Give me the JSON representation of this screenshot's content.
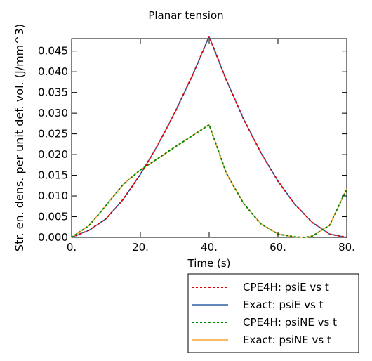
{
  "chart_data": {
    "type": "line",
    "title": "Planar tension",
    "xlabel": "Time (s)",
    "ylabel": "Str. en. dens. per unit def. vol. (J/mm^3)",
    "xlim": [
      0,
      80
    ],
    "ylim": [
      0,
      0.048
    ],
    "xticks": [
      0,
      20,
      40,
      60,
      80
    ],
    "xtick_labels": [
      "0.",
      "20.",
      "40.",
      "60.",
      "80."
    ],
    "yticks": [
      0,
      0.005,
      0.01,
      0.015,
      0.02,
      0.025,
      0.03,
      0.035,
      0.04,
      0.045
    ],
    "ytick_labels": [
      "0.000",
      "0.005",
      "0.010",
      "0.015",
      "0.020",
      "0.025",
      "0.030",
      "0.035",
      "0.040",
      "0.045"
    ],
    "grid": false,
    "legend_position": "below-right",
    "series": [
      {
        "name": "CPE4H: psiE vs t",
        "color": "#dd0000",
        "style": "dotted",
        "x": [
          0,
          5,
          10,
          15,
          20,
          25,
          30,
          35,
          40,
          45,
          50,
          55,
          60,
          65,
          70,
          75,
          80
        ],
        "y": [
          0.0,
          0.0017,
          0.0045,
          0.0092,
          0.0152,
          0.0222,
          0.0301,
          0.0389,
          0.0485,
          0.038,
          0.0286,
          0.0205,
          0.0136,
          0.0079,
          0.0036,
          0.0008,
          0.0
        ]
      },
      {
        "name": "Exact: psiE vs t",
        "color": "#3060a8",
        "style": "solid",
        "x": [
          0,
          5,
          10,
          15,
          20,
          25,
          30,
          35,
          40,
          45,
          50,
          55,
          60,
          65,
          70,
          75,
          80
        ],
        "y": [
          0.0,
          0.0017,
          0.0045,
          0.0092,
          0.0152,
          0.0222,
          0.0301,
          0.0389,
          0.0485,
          0.038,
          0.0286,
          0.0205,
          0.0136,
          0.0079,
          0.0036,
          0.0008,
          0.0
        ]
      },
      {
        "name": "CPE4H: psiNE vs t",
        "color": "#008800",
        "style": "dotted",
        "x": [
          0,
          5,
          10,
          15,
          20,
          25,
          30,
          35,
          40,
          45,
          50,
          55,
          60,
          65,
          68,
          70,
          75,
          80
        ],
        "y": [
          0.0,
          0.0028,
          0.0077,
          0.0128,
          0.0163,
          0.019,
          0.0218,
          0.0245,
          0.0272,
          0.0155,
          0.0082,
          0.0033,
          0.0008,
          0.0001,
          0.0,
          0.0003,
          0.0029,
          0.0117
        ]
      },
      {
        "name": "Exact: psiNE vs t",
        "color": "#ffa030",
        "style": "solid",
        "x": [
          0,
          5,
          10,
          15,
          20,
          25,
          30,
          35,
          40,
          45,
          50,
          55,
          60,
          65,
          68,
          70,
          75,
          80
        ],
        "y": [
          0.0,
          0.0028,
          0.0077,
          0.0128,
          0.0163,
          0.019,
          0.0218,
          0.0245,
          0.0272,
          0.0155,
          0.0082,
          0.0033,
          0.0008,
          0.0001,
          0.0,
          0.0003,
          0.0029,
          0.0117
        ]
      }
    ]
  }
}
